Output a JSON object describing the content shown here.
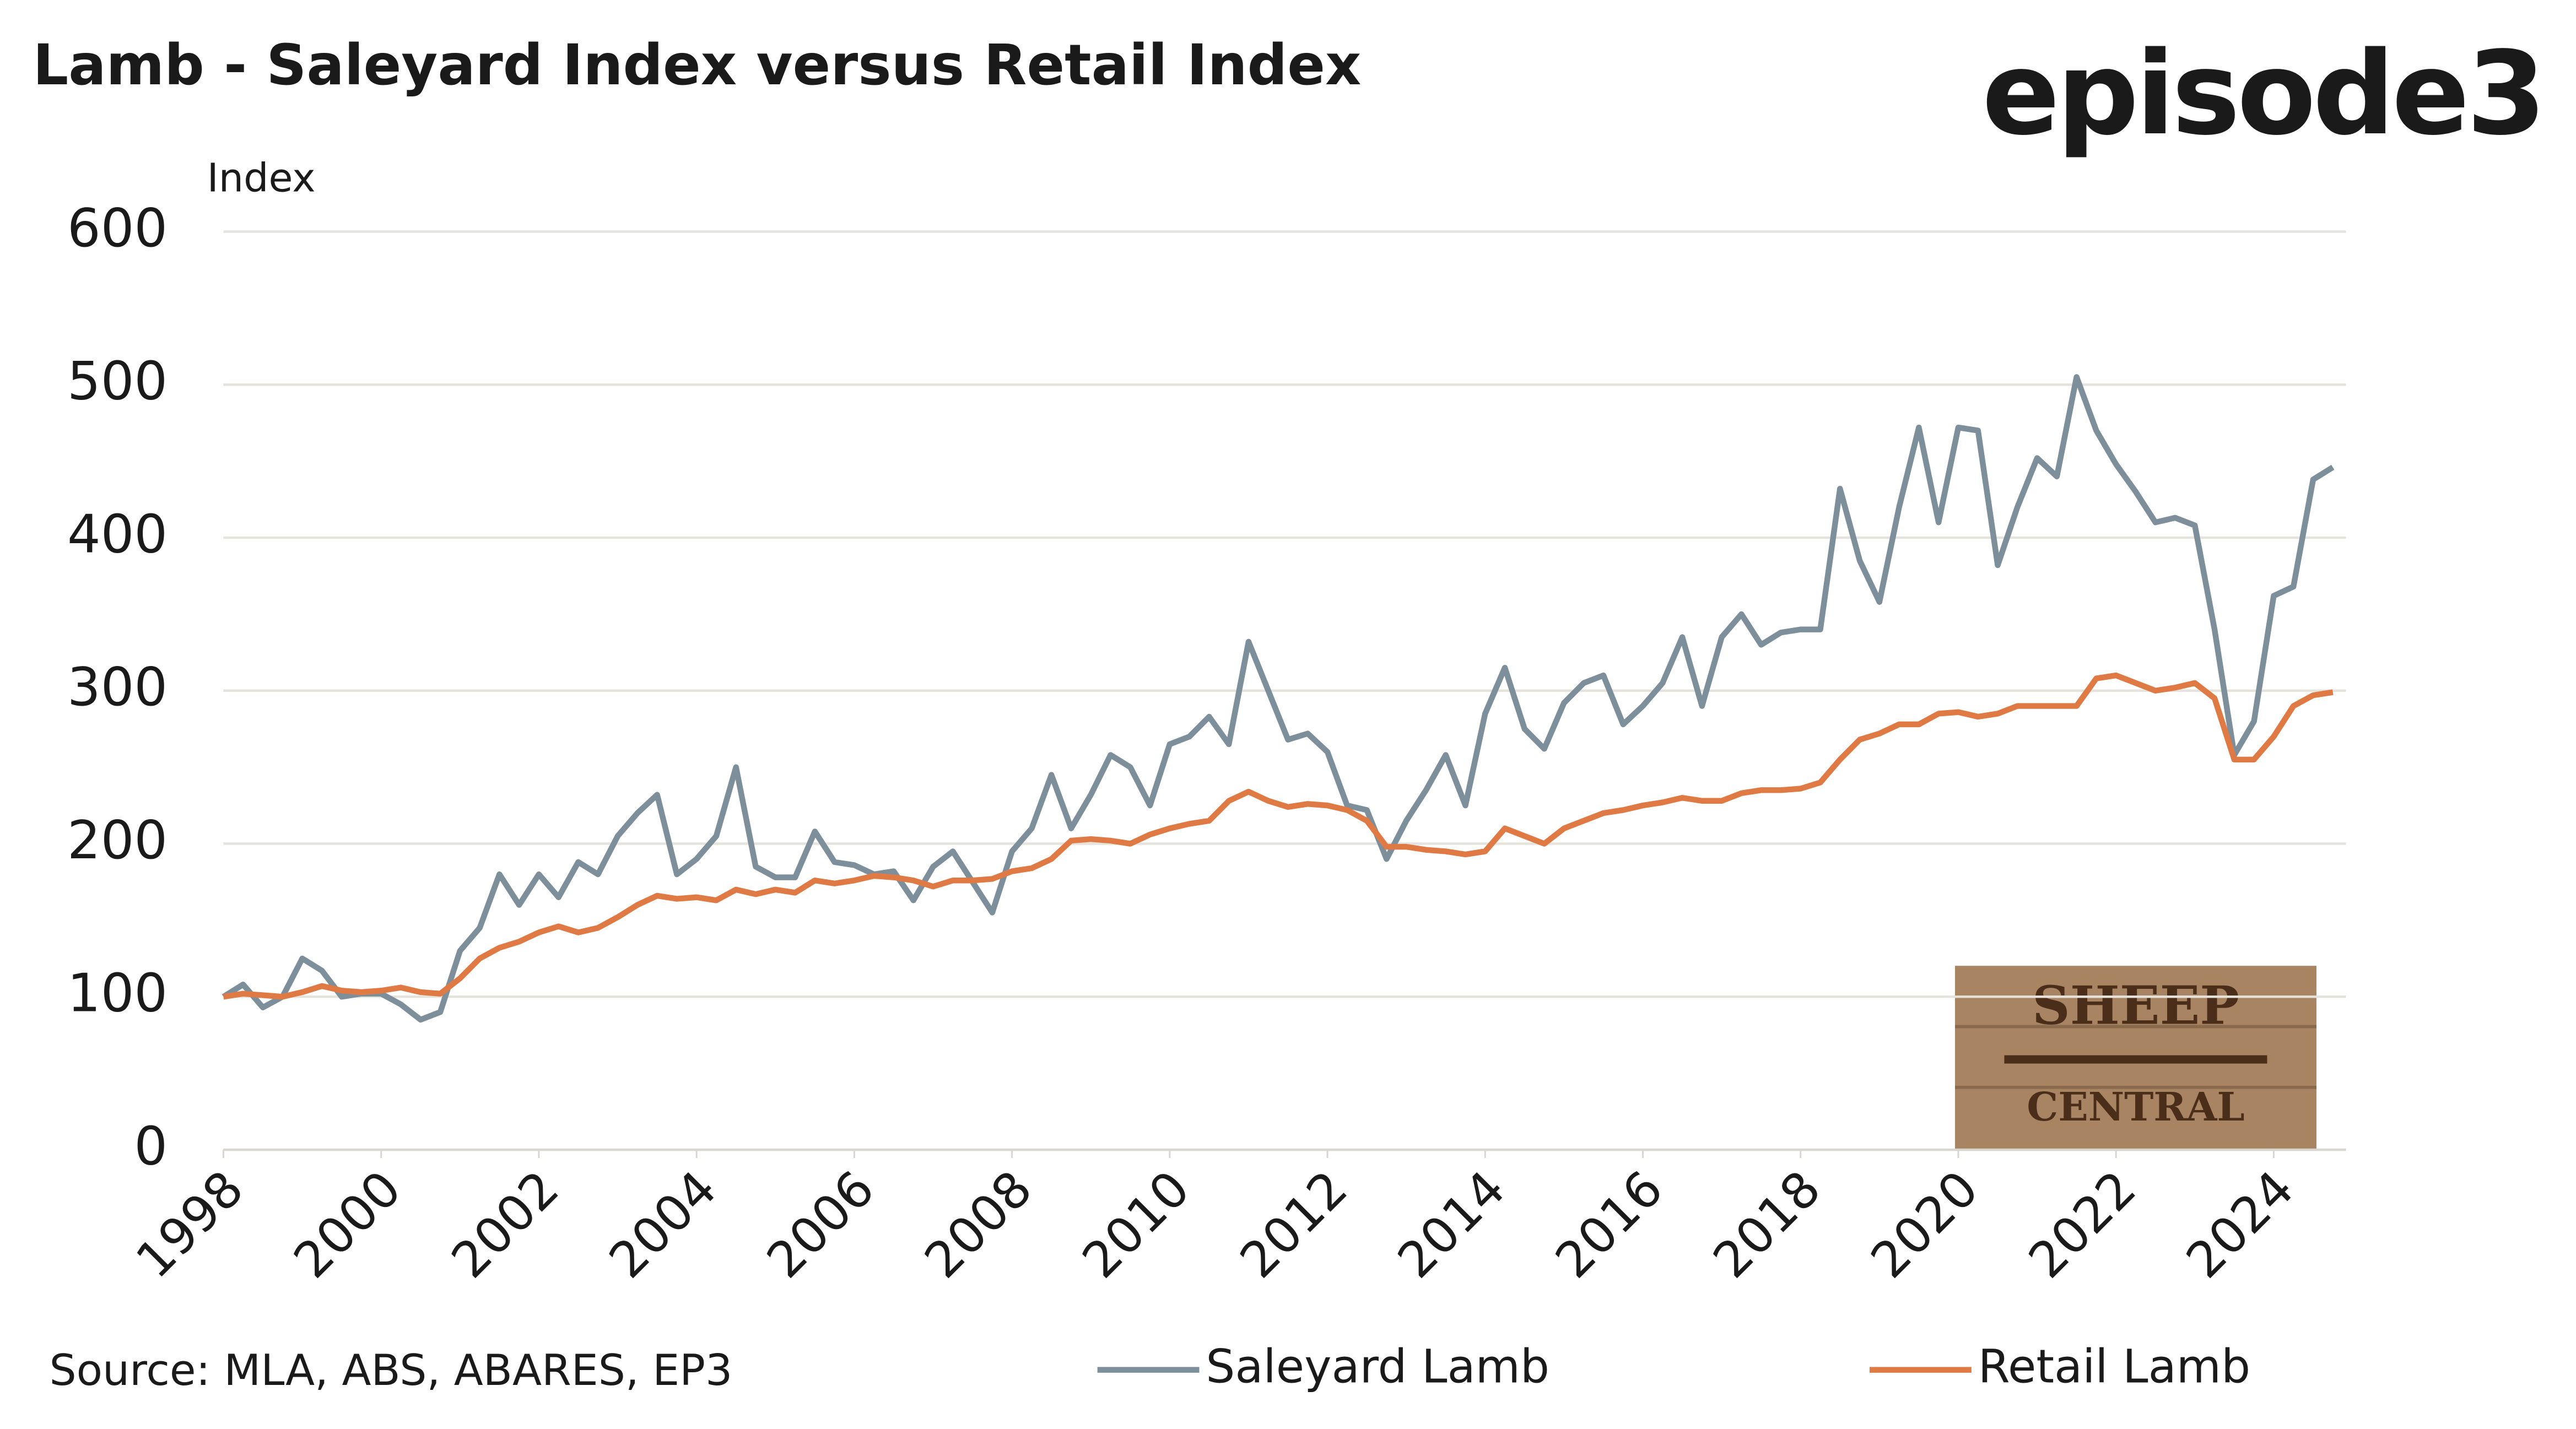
{
  "chart_data": {
    "type": "line",
    "title": "Lamb - Saleyard Index versus Retail Index",
    "brand": "episode3",
    "badge": [
      "SHEEP",
      "CENTRAL"
    ],
    "y_label": "Index",
    "source": "Source: MLA, ABS, ABARES, EP3",
    "x": [
      1998,
      1998.25,
      1998.5,
      1998.75,
      1999,
      1999.25,
      1999.5,
      1999.75,
      2000,
      2000.25,
      2000.5,
      2000.75,
      2001,
      2001.25,
      2001.5,
      2001.75,
      2002,
      2002.25,
      2002.5,
      2002.75,
      2003,
      2003.25,
      2003.5,
      2003.75,
      2004,
      2004.25,
      2004.5,
      2004.75,
      2005,
      2005.25,
      2005.5,
      2005.75,
      2006,
      2006.25,
      2006.5,
      2006.75,
      2007,
      2007.25,
      2007.5,
      2007.75,
      2008,
      2008.25,
      2008.5,
      2008.75,
      2009,
      2009.25,
      2009.5,
      2009.75,
      2010,
      2010.25,
      2010.5,
      2010.75,
      2011,
      2011.25,
      2011.5,
      2011.75,
      2012,
      2012.25,
      2012.5,
      2012.75,
      2013,
      2013.25,
      2013.5,
      2013.75,
      2014,
      2014.25,
      2014.5,
      2014.75,
      2015,
      2015.25,
      2015.5,
      2015.75,
      2016,
      2016.25,
      2016.5,
      2016.75,
      2017,
      2017.25,
      2017.5,
      2017.75,
      2018,
      2018.25,
      2018.5,
      2018.75,
      2019,
      2019.25,
      2019.5,
      2019.75,
      2020,
      2020.25,
      2020.5,
      2020.75,
      2021,
      2021.25,
      2021.5,
      2021.75,
      2022,
      2022.25,
      2022.5,
      2022.75,
      2023,
      2023.25,
      2023.5,
      2023.75,
      2024,
      2024.25,
      2024.5,
      2024.75
    ],
    "series": [
      {
        "name": "Saleyard Lamb",
        "color": "#7d8f9b",
        "values": [
          100,
          108,
          93,
          100,
          125,
          117,
          100,
          102,
          102,
          95,
          85,
          90,
          130,
          145,
          180,
          160,
          180,
          165,
          188,
          180,
          205,
          220,
          232,
          180,
          190,
          205,
          250,
          185,
          178,
          178,
          208,
          188,
          186,
          180,
          182,
          163,
          185,
          195,
          175,
          155,
          195,
          210,
          245,
          210,
          232,
          258,
          250,
          225,
          265,
          270,
          283,
          265,
          332,
          300,
          268,
          272,
          260,
          225,
          222,
          190,
          215,
          235,
          258,
          225,
          285,
          315,
          275,
          262,
          292,
          305,
          310,
          278,
          290,
          305,
          335,
          290,
          335,
          350,
          330,
          338,
          340,
          340,
          432,
          385,
          358,
          420,
          472,
          410,
          472,
          470,
          382,
          420,
          452,
          440,
          505,
          470,
          448,
          430,
          410,
          413,
          408,
          340,
          258,
          280,
          362,
          368,
          438,
          446
        ]
      },
      {
        "name": "Retail Lamb",
        "color": "#e07a45",
        "values": [
          100,
          102,
          101,
          100,
          103,
          107,
          104,
          103,
          104,
          106,
          103,
          102,
          112,
          125,
          132,
          136,
          142,
          146,
          142,
          145,
          152,
          160,
          166,
          164,
          165,
          163,
          170,
          167,
          170,
          168,
          176,
          174,
          176,
          179,
          178,
          176,
          172,
          176,
          176,
          177,
          182,
          184,
          190,
          202,
          203,
          202,
          200,
          206,
          210,
          213,
          215,
          228,
          234,
          228,
          224,
          226,
          225,
          222,
          215,
          198,
          198,
          196,
          195,
          193,
          195,
          210,
          205,
          200,
          210,
          215,
          220,
          222,
          225,
          227,
          230,
          228,
          228,
          233,
          235,
          235,
          236,
          240,
          255,
          268,
          272,
          278,
          278,
          285,
          286,
          283,
          285,
          290,
          290,
          290,
          290,
          308,
          310,
          305,
          300,
          302,
          305,
          295,
          255,
          255,
          270,
          290,
          297,
          299
        ]
      }
    ],
    "xlim": [
      1998,
      2024.75
    ],
    "xticks": [
      1998,
      2000,
      2002,
      2004,
      2006,
      2008,
      2010,
      2012,
      2014,
      2016,
      2018,
      2020,
      2022,
      2024
    ],
    "ylim": [
      0,
      600
    ],
    "yticks": [
      0,
      100,
      200,
      300,
      400,
      500,
      600
    ],
    "grid": true
  }
}
